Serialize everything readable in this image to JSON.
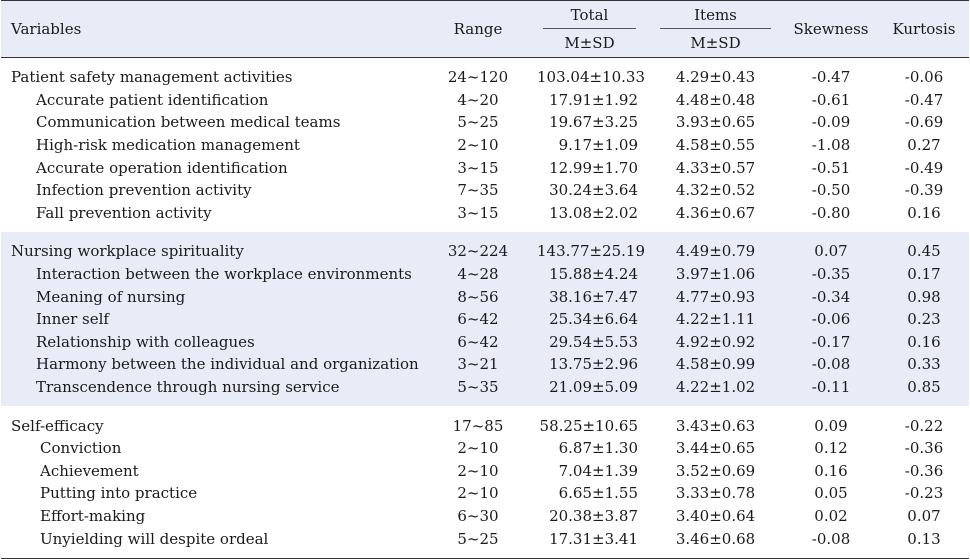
{
  "header": {
    "variables": "Variables",
    "range": "Range",
    "total": "Total",
    "items": "Items",
    "skewness": "Skewness",
    "kurtosis": "Kurtosis",
    "msd_total": "M±SD",
    "msd_items": "M±SD"
  },
  "groups": [
    {
      "rows": [
        {
          "name": "Patient safety management activities",
          "range": "24~120",
          "total": "103.04±10.33",
          "items": "4.29±0.43",
          "skew": "-0.47",
          "kurt": "-0.06"
        },
        {
          "name": "Accurate patient identification",
          "range": "4~20",
          "total": "17.91±1.92",
          "items": "4.48±0.48",
          "skew": "-0.61",
          "kurt": "-0.47"
        },
        {
          "name": "Communication between medical teams",
          "range": "5~25",
          "total": "19.67±3.25",
          "items": "3.93±0.65",
          "skew": "-0.09",
          "kurt": "-0.69"
        },
        {
          "name": "High-risk medication management",
          "range": "2~10",
          "total": "9.17±1.09",
          "items": "4.58±0.55",
          "skew": "-1.08",
          "kurt": "0.27"
        },
        {
          "name": "Accurate operation identification",
          "range": "3~15",
          "total": "12.99±1.70",
          "items": "4.33±0.57",
          "skew": "-0.51",
          "kurt": "-0.49"
        },
        {
          "name": "Infection prevention activity",
          "range": "7~35",
          "total": "30.24±3.64",
          "items": "4.32±0.52",
          "skew": "-0.50",
          "kurt": "-0.39"
        },
        {
          "name": "Fall prevention activity",
          "range": "3~15",
          "total": "13.08±2.02",
          "items": "4.36±0.67",
          "skew": "-0.80",
          "kurt": "0.16"
        }
      ]
    },
    {
      "rows": [
        {
          "name": "Nursing workplace spirituality",
          "range": "32~224",
          "total": "143.77±25.19",
          "items": "4.49±0.79",
          "skew": "0.07",
          "kurt": "0.45"
        },
        {
          "name": "Interaction between the workplace environments",
          "range": "4~28",
          "total": "15.88±4.24",
          "items": "3.97±1.06",
          "skew": "-0.35",
          "kurt": "0.17"
        },
        {
          "name": "Meaning of nursing",
          "range": "8~56",
          "total": "38.16±7.47",
          "items": "4.77±0.93",
          "skew": "-0.34",
          "kurt": "0.98"
        },
        {
          "name": "Inner self",
          "range": "6~42",
          "total": "25.34±6.64",
          "items": "4.22±1.11",
          "skew": "-0.06",
          "kurt": "0.23"
        },
        {
          "name": "Relationship with colleagues",
          "range": "6~42",
          "total": "29.54±5.53",
          "items": "4.92±0.92",
          "skew": "-0.17",
          "kurt": "0.16"
        },
        {
          "name": "Harmony between the individual and organization",
          "range": "3~21",
          "total": "13.75±2.96",
          "items": "4.58±0.99",
          "skew": "-0.08",
          "kurt": "0.33"
        },
        {
          "name": "Transcendence through nursing service",
          "range": "5~35",
          "total": "21.09±5.09",
          "items": "4.22±1.02",
          "skew": "-0.11",
          "kurt": "0.85"
        }
      ]
    },
    {
      "rows": [
        {
          "name": "Self-efficacy",
          "range": "17~85",
          "total": "58.25±10.65",
          "items": "3.43±0.63",
          "skew": "0.09",
          "kurt": "-0.22"
        },
        {
          "name": "Conviction",
          "range": "2~10",
          "total": "6.87±1.30",
          "items": "3.44±0.65",
          "skew": "0.12",
          "kurt": "-0.36"
        },
        {
          "name": "Achievement",
          "range": "2~10",
          "total": "7.04±1.39",
          "items": "3.52±0.69",
          "skew": "0.16",
          "kurt": "-0.36"
        },
        {
          "name": "Putting into practice",
          "range": "2~10",
          "total": "6.65±1.55",
          "items": "3.33±0.78",
          "skew": "0.05",
          "kurt": "-0.23"
        },
        {
          "name": "Effort-making",
          "range": "6~30",
          "total": "20.38±3.87",
          "items": "3.40±0.64",
          "skew": "0.02",
          "kurt": "0.07"
        },
        {
          "name": "Unyielding will despite ordeal",
          "range": "5~25",
          "total": "17.31±3.41",
          "items": "3.46±0.68",
          "skew": "-0.08",
          "kurt": "0.13"
        }
      ]
    }
  ]
}
